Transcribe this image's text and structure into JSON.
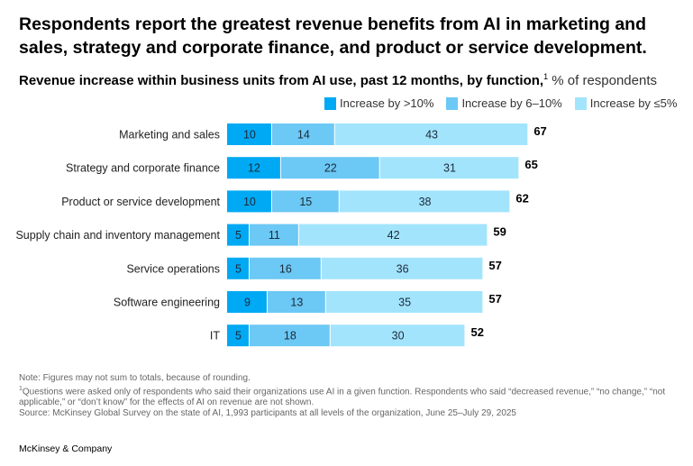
{
  "title": "Respondents report the greatest revenue benefits from AI in marketing and sales, strategy and corporate finance, and product or service development.",
  "subtitle": "Revenue increase within business units from AI use, past 12 months, by function,",
  "subtitle_footnote": "1",
  "subtitle_unit": "% of respondents",
  "chart_data": {
    "type": "bar",
    "orientation": "horizontal",
    "stacked": true,
    "categories": [
      "Marketing and sales",
      "Strategy and corporate finance",
      "Product or service development",
      "Supply chain and inventory management",
      "Service operations",
      "Software engineering",
      "IT"
    ],
    "series": [
      {
        "name": "Increase by >10%",
        "color": "#00a9f4",
        "values": [
          10,
          12,
          10,
          5,
          5,
          9,
          5
        ]
      },
      {
        "name": "Increase by 6–10%",
        "color": "#6cc8f4",
        "values": [
          14,
          22,
          15,
          11,
          16,
          13,
          18
        ]
      },
      {
        "name": "Increase by ≤5%",
        "color": "#a3e4fd",
        "values": [
          43,
          31,
          38,
          42,
          36,
          35,
          30
        ]
      }
    ],
    "totals": [
      67,
      65,
      62,
      59,
      57,
      57,
      52
    ],
    "legend_position": "top-right",
    "grid": false
  },
  "notes": {
    "note": "Note: Figures may not sum to totals, because of rounding.",
    "footnote_marker": "1",
    "footnote": "Questions were asked only of respondents who said their organizations use AI in a given function. Respondents who said “decreased revenue,” “no change,” “not applicable,” or “don’t know” for the effects of AI on revenue are not shown.",
    "source": "Source: McKinsey Global Survey on the state of AI, 1,993 participants at all levels of the organization, June 25–July 29, 2025"
  },
  "brand": "McKinsey & Company"
}
